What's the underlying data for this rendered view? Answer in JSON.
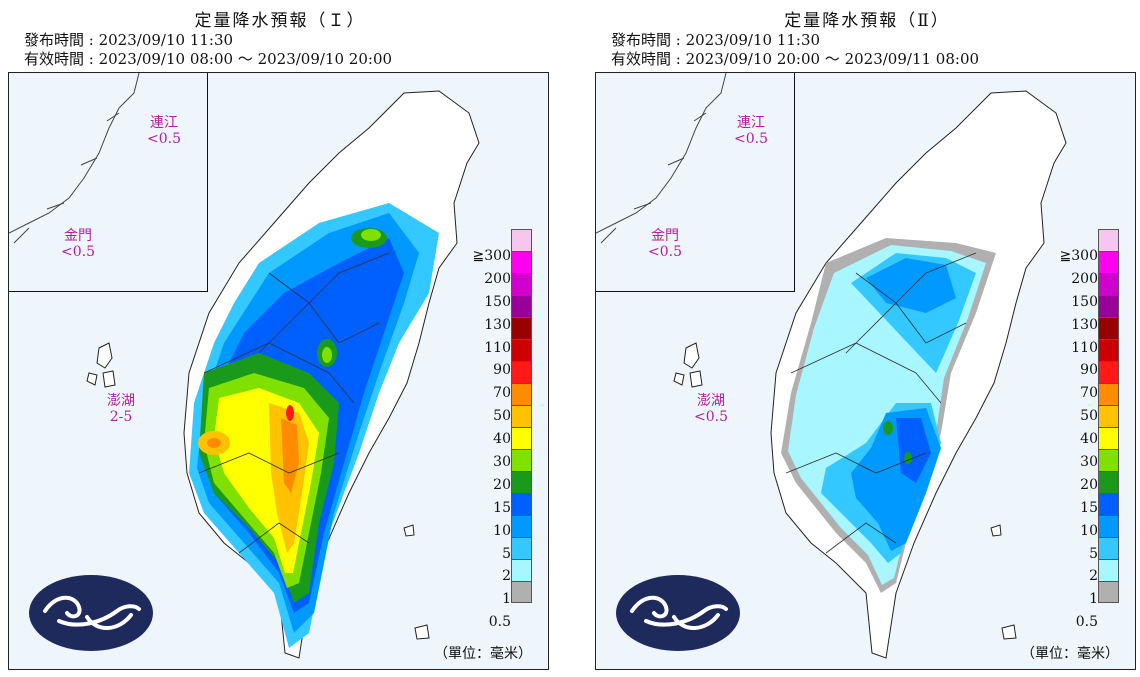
{
  "legend": {
    "labels": [
      "≧300",
      "200",
      "150",
      "130",
      "110",
      "90",
      "70",
      "50",
      "40",
      "30",
      "20",
      "15",
      "10",
      "5",
      "2",
      "1",
      "0.5"
    ],
    "colors": [
      "#f7c6f0",
      "#ff00f0",
      "#d000d0",
      "#990099",
      "#990000",
      "#cc0000",
      "#ff1a1a",
      "#ff8c00",
      "#ffc200",
      "#ffff00",
      "#80e000",
      "#1a9a1a",
      "#0060ff",
      "#0099ff",
      "#33c8ff",
      "#a8f6ff",
      "#b0b0b0"
    ],
    "unit": "（單位：毫米）"
  },
  "panels": [
    {
      "title": "定量降水預報（Ｉ）",
      "issue": "發布時間 : 2023/09/10 11:30",
      "valid": "有效時間 : 2023/09/10 08:00 ～ 2023/09/10 20:00",
      "matsu": {
        "name": "連江",
        "value": "<0.5"
      },
      "kinmen": {
        "name": "金門",
        "value": "<0.5"
      },
      "penghu": {
        "name": "澎湖",
        "value": "2-5"
      },
      "map_layers": [
        {
          "color": "#33c8ff",
          "label": "2"
        },
        {
          "color": "#0099ff",
          "label": "5"
        },
        {
          "color": "#0060ff",
          "label": "10"
        },
        {
          "color": "#1a9a1a",
          "label": "15"
        },
        {
          "color": "#80e000",
          "label": "20"
        },
        {
          "color": "#ffff00",
          "label": "30"
        },
        {
          "color": "#ffc200",
          "label": "40"
        },
        {
          "color": "#ff8c00",
          "label": "50"
        },
        {
          "color": "#ff1a1a",
          "label": "70"
        }
      ]
    },
    {
      "title": "定量降水預報（Ⅱ）",
      "issue": "發布時間 : 2023/09/10 11:30",
      "valid": "有效時間 : 2023/09/10 20:00 ～ 2023/09/11 08:00",
      "matsu": {
        "name": "連江",
        "value": "<0.5"
      },
      "kinmen": {
        "name": "金門",
        "value": "<0.5"
      },
      "penghu": {
        "name": "澎湖",
        "value": "<0.5"
      },
      "map_layers": [
        {
          "color": "#b0b0b0",
          "label": "0.5"
        },
        {
          "color": "#a8f6ff",
          "label": "1"
        },
        {
          "color": "#33c8ff",
          "label": "2"
        },
        {
          "color": "#0099ff",
          "label": "5"
        },
        {
          "color": "#0060ff",
          "label": "10"
        },
        {
          "color": "#1a9a1a",
          "label": "15"
        }
      ]
    }
  ],
  "logo": {
    "name": "cwa-logo",
    "color": "#1f2a5c"
  }
}
